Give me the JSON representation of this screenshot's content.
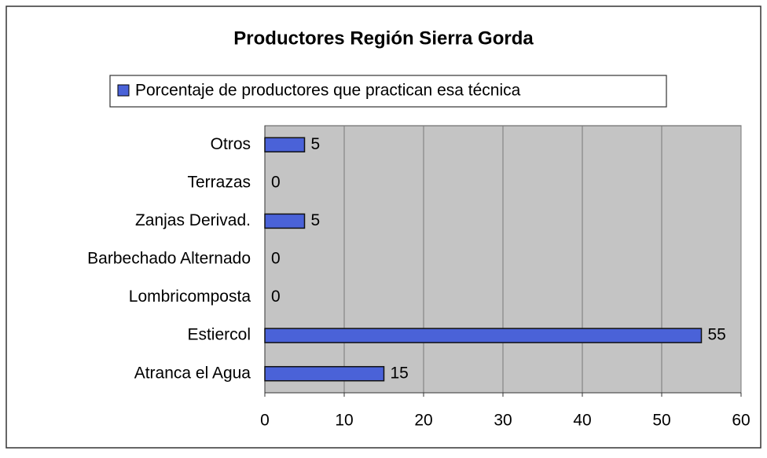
{
  "chart_data": {
    "type": "bar",
    "orientation": "horizontal",
    "title": "Productores Región Sierra Gorda",
    "categories": [
      "Otros",
      "Terrazas",
      "Zanjas Derivad.",
      "Barbechado Alternado",
      "Lombricomposta",
      "Estiercol",
      "Atranca el Agua"
    ],
    "series": [
      {
        "name": "Porcentaje de productores que practican esa técnica",
        "color": "#4a62d8",
        "values": [
          5,
          0,
          5,
          0,
          0,
          55,
          15
        ]
      }
    ],
    "xlim": [
      0,
      60
    ],
    "xticks": [
      0,
      10,
      20,
      30,
      40,
      50,
      60
    ],
    "grid": true,
    "legend": "top"
  }
}
